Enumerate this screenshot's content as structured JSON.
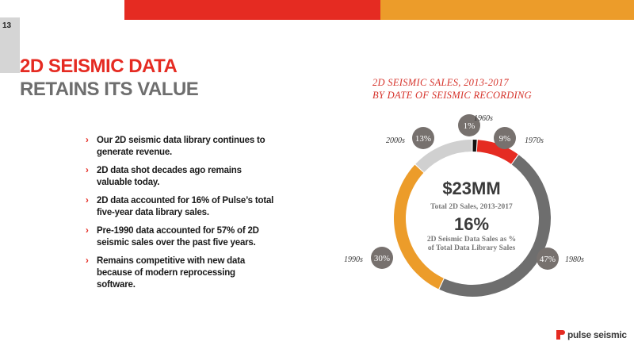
{
  "page": {
    "number": "13"
  },
  "title": {
    "line1": "2D SEISMIC DATA",
    "line2": "RETAINS ITS VALUE"
  },
  "bullets": [
    "Our 2D seismic data library continues to generate revenue.",
    "2D data shot decades ago remains valuable today.",
    "2D data accounted for  16% of Pulse’s total five-year data library sales.",
    "Pre-1990 data accounted for 57% of 2D seismic sales over the past five years.",
    "Remains competitive with new data because of modern reprocessing software."
  ],
  "bullet_marker": "›",
  "colors": {
    "red": "#e52b22",
    "orange": "#ec9c2a",
    "gray": "#6e6e6e",
    "dark": "#121212",
    "light_gray": "#d0d0d0",
    "bubble": "#77716e"
  },
  "chart_data": {
    "type": "donut",
    "title": "2D SEISMIC SALES, 2013-2017",
    "subtitle": "BY DATE OF SEISMIC RECORDING",
    "units": "%",
    "segments": [
      {
        "label": "1960s",
        "value": 1,
        "value_label": "1%",
        "color": "#121212"
      },
      {
        "label": "1970s",
        "value": 9,
        "value_label": "9%",
        "color": "#e52b22"
      },
      {
        "label": "1980s",
        "value": 47,
        "value_label": "47%",
        "color": "#6e6e6e"
      },
      {
        "label": "1990s",
        "value": 30,
        "value_label": "30%",
        "color": "#ec9c2a"
      },
      {
        "label": "2000s",
        "value": 13,
        "value_label": "13%",
        "color": "#d0d0d0"
      }
    ],
    "center": {
      "amount": "$23MM",
      "amount_label": "Total 2D Sales, 2013-2017",
      "percent": "16%",
      "percent_label": "2D Seismic Data Sales as % of Total Data Library Sales"
    }
  },
  "logo": {
    "text": "pulse seismic"
  }
}
